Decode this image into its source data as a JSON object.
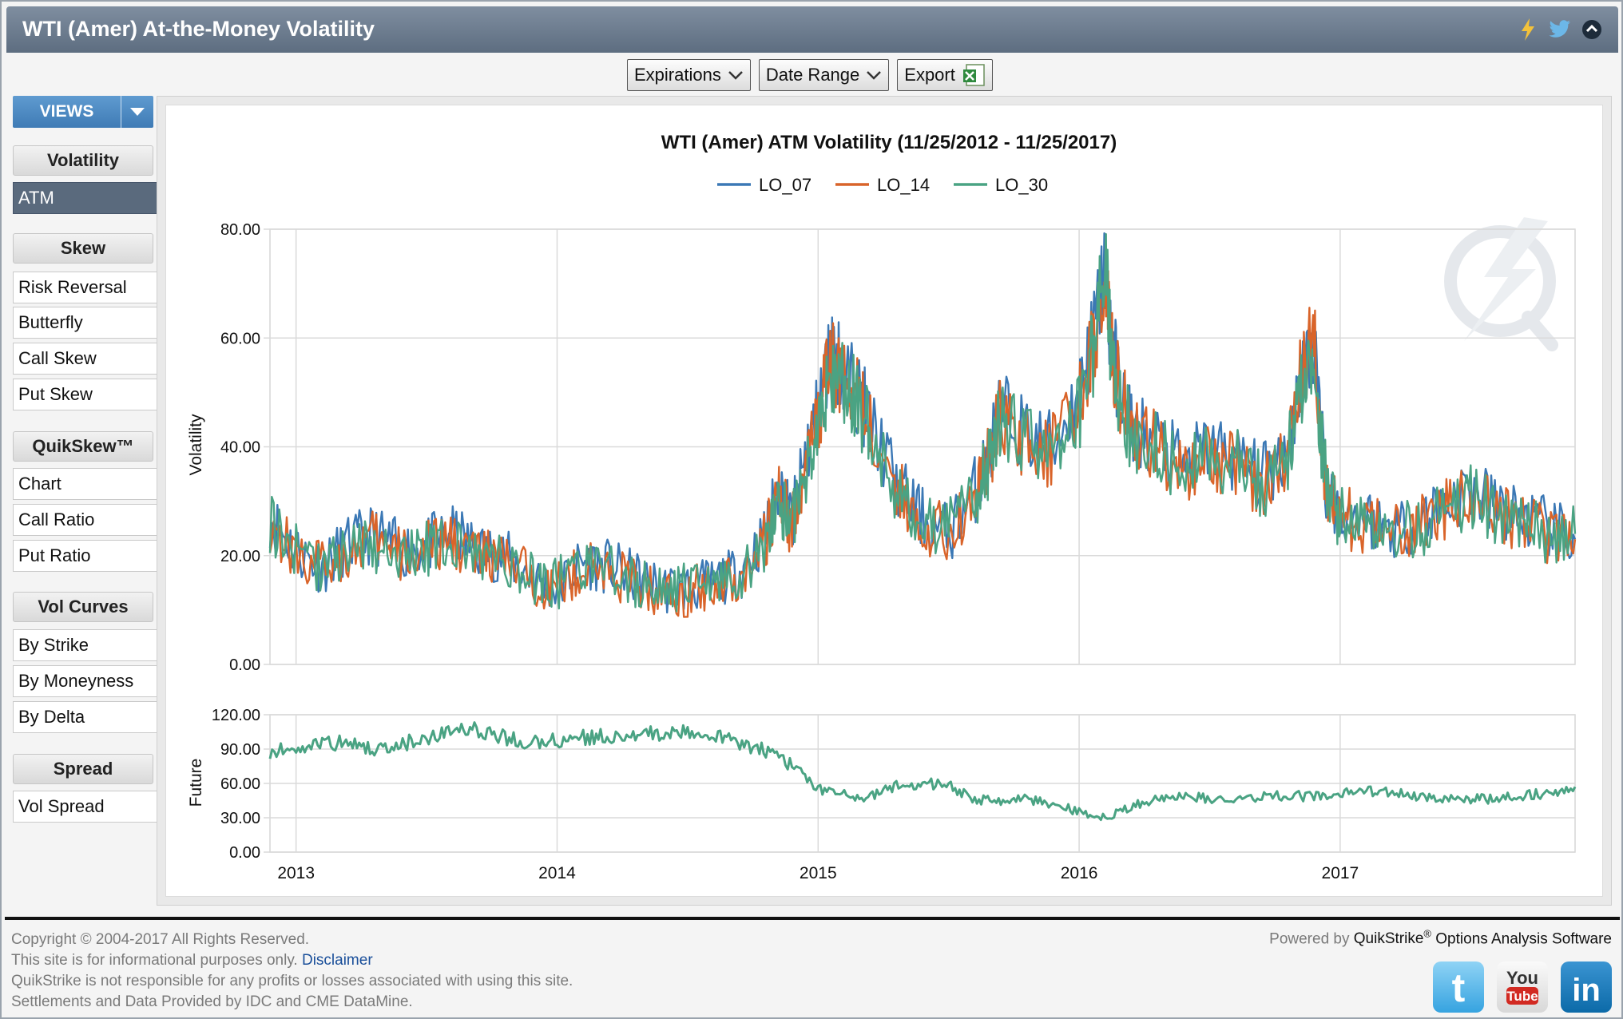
{
  "window": {
    "title": "WTI (Amer) At-the-Money Volatility",
    "icons": [
      "lightning-icon",
      "twitter-icon",
      "collapse-icon"
    ]
  },
  "toolbar": {
    "expirations_label": "Expirations",
    "date_range_label": "Date Range",
    "export_label": "Export"
  },
  "sidebar": {
    "views_label": "VIEWS",
    "groups": [
      {
        "label": "Volatility",
        "items": [
          "ATM"
        ]
      },
      {
        "label": "Skew",
        "items": [
          "Risk Reversal",
          "Butterfly",
          "Call Skew",
          "Put Skew"
        ]
      },
      {
        "label": "QuikSkew™",
        "items": [
          "Chart",
          "Call Ratio",
          "Put Ratio"
        ]
      },
      {
        "label": "Vol Curves",
        "items": [
          "By Strike",
          "By Moneyness",
          "By Delta"
        ]
      },
      {
        "label": "Spread",
        "items": [
          "Vol Spread"
        ]
      }
    ],
    "active_item": "ATM"
  },
  "chart_data": [
    {
      "type": "line",
      "title": "WTI (Amer) ATM Volatility (11/25/2012 - 11/25/2017)",
      "ylabel": "Volatility",
      "xlabel": "",
      "ylim": [
        0,
        80
      ],
      "yticks": [
        "0.00",
        "20.00",
        "40.00",
        "60.00",
        "80.00"
      ],
      "xticks": [
        "2013",
        "2014",
        "2015",
        "2016",
        "2017"
      ],
      "xrange": [
        2012.9,
        2017.9
      ],
      "legend_position": "top-center",
      "grid": true,
      "x": [
        2012.9,
        2013.0,
        2013.1,
        2013.2,
        2013.3,
        2013.4,
        2013.5,
        2013.6,
        2013.7,
        2013.8,
        2013.9,
        2014.0,
        2014.1,
        2014.2,
        2014.3,
        2014.4,
        2014.5,
        2014.6,
        2014.7,
        2014.8,
        2014.85,
        2014.9,
        2014.95,
        2015.0,
        2015.05,
        2015.1,
        2015.15,
        2015.2,
        2015.3,
        2015.4,
        2015.5,
        2015.6,
        2015.65,
        2015.7,
        2015.8,
        2015.9,
        2016.0,
        2016.05,
        2016.1,
        2016.12,
        2016.15,
        2016.2,
        2016.3,
        2016.4,
        2016.5,
        2016.6,
        2016.7,
        2016.8,
        2016.85,
        2016.9,
        2016.95,
        2017.0,
        2017.1,
        2017.2,
        2017.3,
        2017.4,
        2017.5,
        2017.6,
        2017.7,
        2017.8,
        2017.9
      ],
      "series": [
        {
          "name": "LO_07",
          "color": "#3b78b5",
          "values": [
            27,
            21,
            18,
            22,
            24,
            21,
            22,
            24,
            21,
            20,
            16,
            14,
            19,
            18,
            16,
            14,
            14,
            15,
            17,
            24,
            33,
            26,
            38,
            47,
            58,
            54,
            50,
            45,
            33,
            27,
            24,
            32,
            38,
            47,
            42,
            40,
            50,
            60,
            73,
            61,
            52,
            44,
            41,
            36,
            40,
            38,
            34,
            40,
            53,
            58,
            32,
            28,
            27,
            25,
            26,
            30,
            32,
            29,
            27,
            25,
            23
          ]
        },
        {
          "name": "LO_14",
          "color": "#d9642a",
          "values": [
            26,
            20,
            18,
            21,
            23,
            20,
            21,
            23,
            20,
            19,
            16,
            14,
            18,
            17,
            15,
            13,
            13,
            15,
            16,
            23,
            31,
            25,
            36,
            45,
            56,
            53,
            49,
            44,
            32,
            26,
            24,
            31,
            37,
            46,
            41,
            39,
            48,
            58,
            71,
            60,
            51,
            43,
            40,
            35,
            39,
            37,
            33,
            39,
            54,
            60,
            31,
            27,
            26,
            24,
            25,
            29,
            31,
            28,
            26,
            24,
            23
          ]
        },
        {
          "name": "LO_30",
          "color": "#4aa383",
          "values": [
            26,
            21,
            18,
            21,
            22,
            20,
            21,
            22,
            20,
            19,
            16,
            15,
            18,
            17,
            15,
            14,
            14,
            15,
            16,
            22,
            30,
            25,
            35,
            44,
            54,
            52,
            48,
            43,
            32,
            26,
            25,
            31,
            37,
            45,
            41,
            39,
            47,
            57,
            76,
            59,
            50,
            42,
            40,
            35,
            39,
            37,
            33,
            38,
            50,
            55,
            31,
            27,
            26,
            24,
            25,
            29,
            31,
            28,
            26,
            24,
            24
          ]
        }
      ]
    },
    {
      "type": "line",
      "title": "",
      "ylabel": "Future",
      "xlabel": "",
      "ylim": [
        0,
        120
      ],
      "yticks": [
        "0.00",
        "30.00",
        "60.00",
        "90.00",
        "120.00"
      ],
      "xticks": [
        "2013",
        "2014",
        "2015",
        "2016",
        "2017"
      ],
      "xrange": [
        2012.9,
        2017.9
      ],
      "grid": true,
      "x": [
        2012.9,
        2013.0,
        2013.1,
        2013.2,
        2013.3,
        2013.4,
        2013.5,
        2013.6,
        2013.7,
        2013.8,
        2013.9,
        2014.0,
        2014.1,
        2014.2,
        2014.3,
        2014.4,
        2014.5,
        2014.6,
        2014.7,
        2014.8,
        2014.9,
        2015.0,
        2015.1,
        2015.2,
        2015.3,
        2015.4,
        2015.5,
        2015.6,
        2015.7,
        2015.8,
        2015.9,
        2016.0,
        2016.1,
        2016.2,
        2016.3,
        2016.4,
        2016.5,
        2016.6,
        2016.7,
        2016.8,
        2016.9,
        2017.0,
        2017.1,
        2017.2,
        2017.3,
        2017.4,
        2017.5,
        2017.6,
        2017.7,
        2017.8,
        2017.9
      ],
      "series": [
        {
          "name": "",
          "color": "#4aa383",
          "values": [
            88,
            92,
            97,
            94,
            90,
            94,
            100,
            107,
            107,
            100,
            96,
            97,
            100,
            102,
            102,
            104,
            106,
            103,
            96,
            88,
            76,
            55,
            50,
            48,
            58,
            60,
            58,
            46,
            45,
            46,
            42,
            35,
            30,
            40,
            46,
            49,
            47,
            44,
            48,
            50,
            48,
            51,
            53,
            52,
            49,
            46,
            46,
            47,
            49,
            52,
            57
          ]
        }
      ]
    }
  ],
  "footer": {
    "copyright": "Copyright © 2004-2017 All Rights Reserved.",
    "info_text": "This site is for informational purposes only.",
    "disclaimer_link": "Disclaimer",
    "responsibility": "QuikStrike is not responsible for any profits or losses associated with using this site.",
    "settlements": "Settlements and Data Provided by IDC and CME DataMine.",
    "powered_prefix": "Powered by",
    "brand": "QuikStrike",
    "brand_mark": "®",
    "powered_suffix": "Options Analysis Software",
    "social": [
      "twitter-icon",
      "youtube-icon",
      "linkedin-icon"
    ]
  }
}
